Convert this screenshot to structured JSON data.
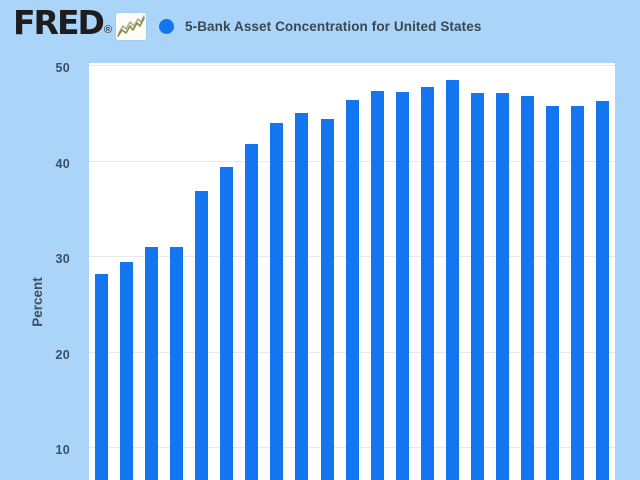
{
  "header": {
    "logo_text": "FRED",
    "registered_mark": "®",
    "legend": {
      "marker": "circle",
      "label": "5-Bank Asset Concentration for United States"
    }
  },
  "chart_data": {
    "type": "bar",
    "title": "5-Bank Asset Concentration for United States",
    "y_axis": {
      "label": "Percent",
      "ticks": [
        50,
        40,
        30,
        20,
        10
      ],
      "grid": true,
      "ylim_visible": [
        6.5,
        50.2
      ]
    },
    "x_axis": {
      "labels_visible": false
    },
    "series": [
      {
        "name": "5-Bank Asset Concentration for United States",
        "unit": "percent",
        "values": [
          28.1,
          29.4,
          30.9,
          31.0,
          36.8,
          39.3,
          41.7,
          43.9,
          45.0,
          44.3,
          46.3,
          47.3,
          47.2,
          47.7,
          48.4,
          47.1,
          47.1,
          46.8,
          45.7,
          45.7,
          46.2
        ]
      }
    ],
    "legend_position": "top",
    "bars_cropped_at_bottom": true
  },
  "colors": {
    "background": "#aad5f8",
    "plot_background": "#ffffff",
    "gridline": "#e8e8e6",
    "bar": "#1376f0",
    "legend_dot": "#1376f0",
    "title_text": "#3b4752",
    "axis_text": "#3d4f63",
    "logo_text": "#1d1d20",
    "icon_line_tan": "#b3ac96",
    "icon_line_olive": "#7e9140"
  }
}
